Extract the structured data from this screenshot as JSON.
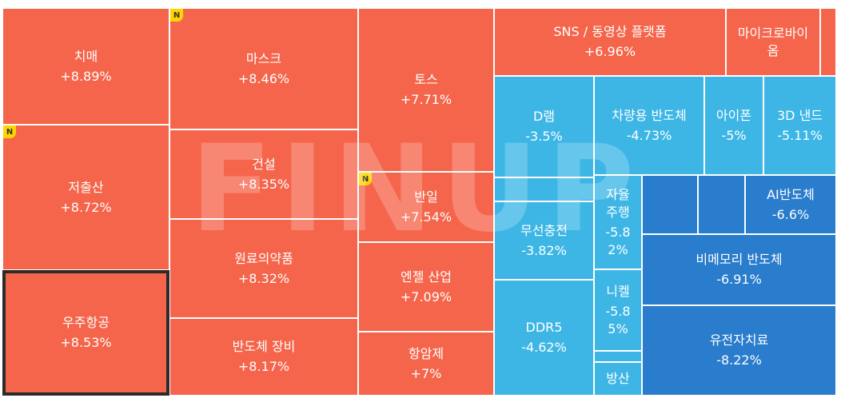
{
  "chart_data": {
    "type": "treemap",
    "unit": "%",
    "colors": {
      "up": "#f5654b",
      "down": "#3db6e6",
      "down_strong": "#2a7ccc",
      "badge": "#ffd500"
    },
    "badge_text": "N",
    "watermark": "FINUP",
    "items": [
      {
        "name": "치매",
        "value": "+8.89%",
        "change": 8.89,
        "badge": false
      },
      {
        "name": "저출산",
        "value": "+8.72%",
        "change": 8.72,
        "badge": true
      },
      {
        "name": "우주항공",
        "value": "+8.53%",
        "change": 8.53,
        "badge": false,
        "selected": true
      },
      {
        "name": "마스크",
        "value": "+8.46%",
        "change": 8.46,
        "badge": true
      },
      {
        "name": "건설",
        "value": "+8.35%",
        "change": 8.35,
        "badge": false
      },
      {
        "name": "원료의약품",
        "value": "+8.32%",
        "change": 8.32,
        "badge": false
      },
      {
        "name": "반도체 장비",
        "value": "+8.17%",
        "change": 8.17,
        "badge": false
      },
      {
        "name": "토스",
        "value": "+7.71%",
        "change": 7.71,
        "badge": false
      },
      {
        "name": "반일",
        "value": "+7.54%",
        "change": 7.54,
        "badge": true
      },
      {
        "name": "엔젤 산업",
        "value": "+7.09%",
        "change": 7.09,
        "badge": false
      },
      {
        "name": "항암제",
        "value": "+7%",
        "change": 7.0,
        "badge": false
      },
      {
        "name": "SNS / 동영상 플랫폼",
        "value": "+6.96%",
        "change": 6.96,
        "badge": false
      },
      {
        "name": "마이크로바이\n옴",
        "value": "",
        "change": null,
        "badge": false
      },
      {
        "name": "",
        "value": "",
        "change": null,
        "badge": false
      },
      {
        "name": "D램",
        "value": "-3.5%",
        "change": -3.5,
        "badge": false
      },
      {
        "name": "차량용 반도체",
        "value": "-4.73%",
        "change": -4.73,
        "badge": false
      },
      {
        "name": "아이폰",
        "value": "-5%",
        "change": -5.0,
        "badge": false
      },
      {
        "name": "3D 낸드",
        "value": "-5.11%",
        "change": -5.11,
        "badge": false
      },
      {
        "name": "",
        "value": "",
        "change": null,
        "badge": false
      },
      {
        "name": "무선충전",
        "value": "-3.82%",
        "change": -3.82,
        "badge": false
      },
      {
        "name": "DDR5",
        "value": "-4.62%",
        "change": -4.62,
        "badge": false
      },
      {
        "name": "자율\n주행",
        "value": "-5.8\n2%",
        "change": -5.82,
        "badge": false
      },
      {
        "name": "니켈",
        "value": "-5.8\n5%",
        "change": -5.85,
        "badge": false
      },
      {
        "name": "",
        "value": "",
        "change": null,
        "badge": false
      },
      {
        "name": "방산",
        "value": "",
        "change": null,
        "badge": false
      },
      {
        "name": "",
        "value": "",
        "change": null,
        "badge": false
      },
      {
        "name": "",
        "value": "",
        "change": null,
        "badge": false
      },
      {
        "name": "AI반도체",
        "value": "-6.6%",
        "change": -6.6,
        "badge": false
      },
      {
        "name": "비메모리 반도체",
        "value": "-6.91%",
        "change": -6.91,
        "badge": false
      },
      {
        "name": "유전자치료",
        "value": "-8.22%",
        "change": -8.22,
        "badge": false
      }
    ]
  }
}
